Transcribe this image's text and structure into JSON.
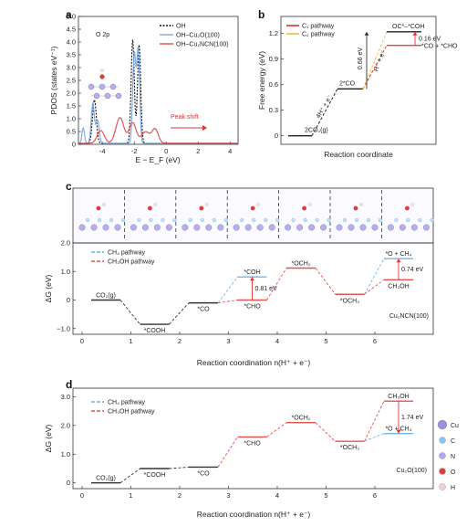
{
  "panels": {
    "a": "a",
    "b": "b",
    "c": "c",
    "d": "d"
  },
  "chart_data": [
    {
      "id": "a",
      "type": "line",
      "xlabel": "E − E_F (eV)",
      "ylabel": "PDOS (states eV⁻¹)",
      "annotation": "O 2p",
      "peak_shift_label": "Peak shift",
      "xlim": [
        -5.5,
        4.5
      ],
      "ylim": [
        0,
        5.0
      ],
      "xticks": [
        -4,
        -2,
        0,
        2,
        4
      ],
      "yticks": [
        0,
        0.5,
        1.0,
        1.5,
        2.0,
        2.5,
        3.0,
        3.5,
        4.0,
        4.5,
        5.0
      ],
      "ytick_labels": [
        "0",
        "0.5",
        "1.0",
        "1.5",
        "2.0",
        "2.5",
        "3.0",
        "3.5",
        "4.0",
        "4.5",
        "5.0"
      ],
      "legend": [
        "OH",
        "OH–Cu₂O(100)",
        "OH–Cu₂NCN(100)"
      ],
      "colors": {
        "OH": "#111111",
        "OH–Cu₂O(100)": "#7ba7e0",
        "OH–Cu₂NCN(100)": "#e04848",
        "arrow": "#e83030"
      },
      "series": [
        {
          "name": "OH",
          "style": "dotted",
          "peaks": [
            {
              "x": -4.5,
              "y": 1.7,
              "w": 0.12
            },
            {
              "x": -2.1,
              "y": 4.05,
              "w": 0.1
            },
            {
              "x": -1.7,
              "y": 3.85,
              "w": 0.1
            }
          ]
        },
        {
          "name": "OH–Cu₂O(100)",
          "style": "solid",
          "peaks": [
            {
              "x": -5.2,
              "y": 0.6,
              "w": 0.08
            },
            {
              "x": -4.6,
              "y": 1.55,
              "w": 0.1
            },
            {
              "x": -4.3,
              "y": 0.9,
              "w": 0.1
            },
            {
              "x": -2.0,
              "y": 3.5,
              "w": 0.1
            },
            {
              "x": -1.75,
              "y": 3.6,
              "w": 0.09
            }
          ]
        },
        {
          "name": "OH–Cu₂NCN(100)",
          "style": "solid",
          "peaks": [
            {
              "x": -4.1,
              "y": 0.5,
              "w": 0.22
            },
            {
              "x": -2.9,
              "y": 1.0,
              "w": 0.25
            },
            {
              "x": -2.1,
              "y": 0.8,
              "w": 0.22
            },
            {
              "x": -1.3,
              "y": 0.45,
              "w": 0.25
            },
            {
              "x": -0.7,
              "y": 0.55,
              "w": 0.2
            }
          ]
        }
      ]
    },
    {
      "id": "b",
      "type": "line",
      "xlabel": "Reaction coordinate",
      "ylabel": "Free energy (eV)",
      "ylim": [
        -0.1,
        1.4
      ],
      "yticks": [
        0,
        0.3,
        0.6,
        0.9,
        1.2
      ],
      "ytick_labels": [
        "0",
        "0.3",
        "0.6",
        "0.9",
        "1.2"
      ],
      "legend": [
        "C₁ pathway",
        "C₂ pathway"
      ],
      "colors": {
        "C₁ pathway": "#e33030",
        "C₂ pathway": "#f5b94a",
        "shared": "#222222",
        "annot": "#333333"
      },
      "states": [
        {
          "label": "2CO₂(g)",
          "y": 0.0
        },
        {
          "label": "2*CO",
          "y": 0.55
        },
        {
          "label": "*CO + *CHO",
          "y": 1.06
        },
        {
          "label": "OC*–*COH",
          "y": 1.22
        }
      ],
      "labels": {
        "step1": "4H⁺ + e⁻",
        "step2": "H⁺ + e⁻",
        "diff1": "0.66 eV",
        "diff2": "0.16 eV"
      }
    },
    {
      "id": "c",
      "type": "line",
      "xlabel": "Reaction coordination n(H⁺ + e⁻)",
      "ylabel": "ΔG (eV)",
      "material": "Cu₂NCN(100)",
      "ylim": [
        -1.2,
        2.0
      ],
      "yticks": [
        -1.0,
        0,
        1.0,
        2.0
      ],
      "ytick_labels": [
        "−1.0",
        "0",
        "1.0",
        "2.0"
      ],
      "xticks": [
        0,
        1,
        2,
        3,
        4,
        5,
        6
      ],
      "legend": [
        "CH₄ pathway",
        "CH₃OH pathway"
      ],
      "colors": {
        "CH₄ pathway": "#6fb6e8",
        "CH₃OH pathway": "#e85050",
        "shared": "#333333",
        "branch": "#9a9a50",
        "arrow": "#e83030"
      },
      "levels": [
        {
          "n": 0,
          "y": 0.0,
          "label": "CO₂(g)",
          "path": "shared"
        },
        {
          "n": 1,
          "y": -0.85,
          "label": "*COOH",
          "path": "shared"
        },
        {
          "n": 2,
          "y": -0.1,
          "label": "*CO",
          "path": "shared"
        },
        {
          "n": 3,
          "y": 0.81,
          "label": "*COH",
          "path": "CH₄"
        },
        {
          "n": 3,
          "y": 0.0,
          "label": "*CHO",
          "path": "CH₃OH"
        },
        {
          "n": 4,
          "y": 1.12,
          "label": "*OCH₂",
          "path": "CH₃OH"
        },
        {
          "n": 5,
          "y": 0.2,
          "label": "*OCH₃",
          "path": "CH₃OH"
        },
        {
          "n": 6,
          "y": 1.45,
          "label": "*O + CH₄",
          "path": "CH₄"
        },
        {
          "n": 6,
          "y": 0.71,
          "label": "CH₃OH",
          "path": "CH₃OH"
        }
      ],
      "diffs": [
        "0.81 eV",
        "0.74 eV"
      ]
    },
    {
      "id": "d",
      "type": "line",
      "xlabel": "Reaction coordination n(H⁺ + e⁻)",
      "ylabel": "ΔG (eV)",
      "material": "Cu₂O(100)",
      "ylim": [
        -0.2,
        3.3
      ],
      "yticks": [
        0,
        1.0,
        2.0,
        3.0
      ],
      "ytick_labels": [
        "0",
        "1.0",
        "2.0",
        "3.0"
      ],
      "xticks": [
        0,
        1,
        2,
        3,
        4,
        5,
        6
      ],
      "legend": [
        "CH₄ pathway",
        "CH₃OH pathway"
      ],
      "colors": {
        "CH₄ pathway": "#6fb6e8",
        "CH₃OH pathway": "#e85050",
        "shared": "#333333",
        "arrow": "#e83030"
      },
      "levels": [
        {
          "n": 0,
          "y": 0.0,
          "label": "CO₂(g)",
          "path": "shared"
        },
        {
          "n": 1,
          "y": 0.5,
          "label": "*COOH",
          "path": "shared"
        },
        {
          "n": 2,
          "y": 0.55,
          "label": "*CO",
          "path": "shared"
        },
        {
          "n": 3,
          "y": 1.6,
          "label": "*CHO",
          "path": "CH₃OH"
        },
        {
          "n": 4,
          "y": 2.1,
          "label": "*OCH₂",
          "path": "CH₃OH"
        },
        {
          "n": 5,
          "y": 1.45,
          "label": "*OCH₃",
          "path": "CH₃OH"
        },
        {
          "n": 6,
          "y": 2.85,
          "label": "CH₃OH",
          "path": "CH₃OH"
        },
        {
          "n": 6,
          "y": 1.72,
          "label": "*O + CH₄",
          "path": "CH₄"
        }
      ],
      "diffs": [
        "1.74 eV"
      ]
    }
  ],
  "element_legend": [
    {
      "symbol": "Cu",
      "color": "#9a8fe0"
    },
    {
      "symbol": "C",
      "color": "#8cc6ef"
    },
    {
      "symbol": "N",
      "color": "#aaaaee"
    },
    {
      "symbol": "O",
      "color": "#e03a3a"
    },
    {
      "symbol": "H",
      "color": "#f5d0d0"
    }
  ]
}
